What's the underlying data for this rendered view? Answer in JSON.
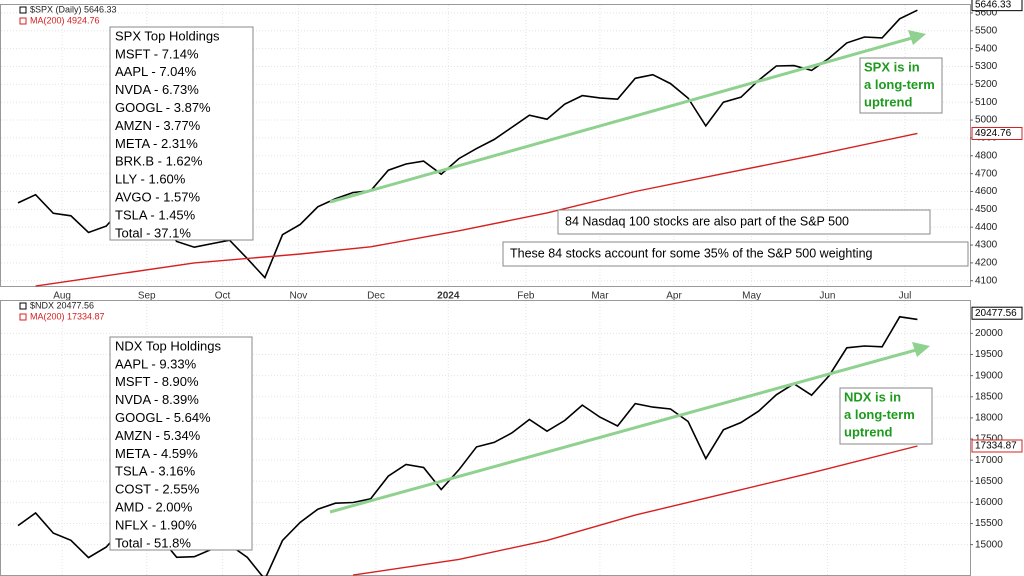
{
  "chart_data": [
    {
      "type": "line",
      "xlim": [
        0,
        52
      ],
      "xticks": [
        {
          "value": 2.5,
          "label": "Aug"
        },
        {
          "value": 7.3,
          "label": "Sep"
        },
        {
          "value": 11.6,
          "label": "Oct"
        },
        {
          "value": 15.9,
          "label": "Nov"
        },
        {
          "value": 20.3,
          "label": "Dec"
        },
        {
          "value": 24.4,
          "label": "2024"
        },
        {
          "value": 28.8,
          "label": "Feb"
        },
        {
          "value": 33.0,
          "label": "Mar"
        },
        {
          "value": 37.2,
          "label": "Apr"
        },
        {
          "value": 41.6,
          "label": "May"
        },
        {
          "value": 45.9,
          "label": "Jun"
        },
        {
          "value": 50.3,
          "label": "Jul"
        }
      ],
      "ylim": [
        4065,
        5650
      ],
      "yticks": [
        4100,
        4200,
        4300,
        4400,
        4500,
        4600,
        4700,
        4800,
        4900,
        5000,
        5100,
        5200,
        5300,
        5400,
        5500,
        5600
      ],
      "grid": true,
      "series": [
        {
          "name": "$SPX (Daily) 5646.33",
          "color": "#000000",
          "last_value": 5646.33,
          "x": [
            0,
            1,
            2,
            3,
            4,
            5,
            6,
            7,
            8,
            9,
            10,
            11,
            12,
            13,
            14,
            15,
            16,
            17,
            18,
            19,
            20,
            21,
            22,
            23,
            24,
            25,
            26,
            27,
            28,
            29,
            30,
            31,
            32,
            33,
            34,
            35,
            36,
            37,
            38,
            39,
            40,
            41,
            42,
            43,
            44,
            45,
            46,
            47,
            48,
            49,
            50,
            51
          ],
          "values": [
            4536,
            4582,
            4478,
            4464,
            4370,
            4406,
            4516,
            4457,
            4450,
            4320,
            4288,
            4308,
            4327,
            4224,
            4117,
            4358,
            4415,
            4514,
            4559,
            4594,
            4604,
            4719,
            4754,
            4770,
            4697,
            4784,
            4840,
            4891,
            4959,
            5027,
            5005,
            5089,
            5137,
            5124,
            5117,
            5234,
            5254,
            5204,
            5123,
            4967,
            5100,
            5128,
            5223,
            5303,
            5305,
            5278,
            5347,
            5432,
            5465,
            5460,
            5567,
            5615
          ]
        },
        {
          "name": "MA(200) 4924.76",
          "color": "#d62020",
          "last_value": 4924.76,
          "x": [
            1,
            10,
            16,
            20,
            25,
            30,
            35,
            40,
            45,
            51
          ],
          "values": [
            4070,
            4200,
            4250,
            4290,
            4380,
            4480,
            4600,
            4700,
            4800,
            4925
          ]
        }
      ],
      "holdings": {
        "title": "SPX Top Holdings",
        "items": [
          "MSFT - 7.14%",
          "AAPL - 7.04%",
          "NVDA - 6.73%",
          "GOOGL - 3.87%",
          "AMZN - 3.77%",
          "META - 2.31%",
          "BRK.B - 1.62%",
          "LLY - 1.60%",
          "AVGO - 1.57%",
          "TSLA - 1.45%",
          "Total - 37.1%"
        ]
      },
      "callout": [
        "SPX is in",
        "a long-term",
        "uptrend"
      ],
      "notes": [
        "84 Nasdaq 100 stocks are also part of the S&P 500",
        "These 84 stocks account for some 35% of the S&P 500 weighting"
      ]
    },
    {
      "type": "line",
      "xlim": [
        0,
        52
      ],
      "xticks": [
        2.5,
        7.3,
        11.6,
        15.9,
        20.3,
        24.4,
        28.8,
        33.0,
        37.2,
        41.6,
        45.9,
        50.3
      ],
      "ylim": [
        14258,
        20790
      ],
      "yticks": [
        15000,
        15500,
        16000,
        16500,
        17000,
        17500,
        18000,
        18500,
        19000,
        19500,
        20000
      ],
      "grid": true,
      "series": [
        {
          "name": "$NDX 20477.56",
          "color": "#000000",
          "last_value": 20477.56,
          "x": [
            0,
            1,
            2,
            3,
            4,
            5,
            6,
            7,
            8,
            9,
            10,
            11,
            12,
            13,
            14,
            15,
            16,
            17,
            18,
            19,
            20,
            21,
            22,
            23,
            24,
            25,
            26,
            27,
            28,
            29,
            30,
            31,
            32,
            33,
            34,
            35,
            36,
            37,
            38,
            39,
            40,
            41,
            42,
            43,
            44,
            45,
            46,
            47,
            48,
            49,
            50,
            51
          ],
          "values": [
            15451,
            15750,
            15274,
            15102,
            14694,
            14942,
            15414,
            15285,
            15202,
            14701,
            14715,
            14894,
            14995,
            14698,
            14180,
            15099,
            15530,
            15840,
            15982,
            15997,
            16085,
            16623,
            16898,
            16825,
            16305,
            16772,
            17314,
            17421,
            17642,
            17962,
            17686,
            17937,
            18302,
            18019,
            17808,
            18339,
            18255,
            18210,
            17915,
            17037,
            17718,
            17890,
            18161,
            18546,
            18809,
            18536,
            19000,
            19659,
            19701,
            19683,
            20392,
            20331
          ]
        },
        {
          "name": "MA(200) 17334.87",
          "color": "#d62020",
          "last_value": 17334.87,
          "x": [
            19,
            25,
            30,
            35,
            40,
            45,
            51
          ],
          "values": [
            14280,
            14650,
            15100,
            15700,
            16200,
            16700,
            17335
          ]
        }
      ],
      "holdings": {
        "title": "NDX Top Holdings",
        "items": [
          "AAPL - 9.33%",
          "MSFT - 8.90%",
          "NVDA - 8.39%",
          "GOOGL - 5.64%",
          "AMZN - 5.34%",
          "META - 4.59%",
          "TSLA - 3.16%",
          "COST - 2.55%",
          "AMD - 2.00%",
          "NFLX - 1.90%",
          "Total - 51.8%"
        ]
      },
      "callout": [
        "NDX is in",
        "a long-term",
        "uptrend"
      ]
    }
  ]
}
